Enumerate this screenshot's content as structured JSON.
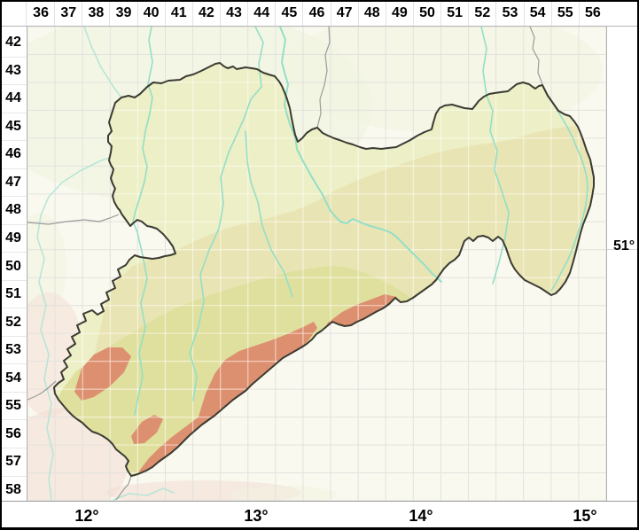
{
  "axes": {
    "top": [
      "36",
      "37",
      "38",
      "39",
      "40",
      "41",
      "42",
      "43",
      "44",
      "45",
      "46",
      "47",
      "48",
      "49",
      "50",
      "51",
      "52",
      "53",
      "54",
      "55",
      "56"
    ],
    "left": [
      "42",
      "43",
      "44",
      "45",
      "46",
      "47",
      "48",
      "49",
      "50",
      "51",
      "52",
      "53",
      "54",
      "55",
      "56",
      "57",
      "58"
    ],
    "bottom": [
      "12°",
      "13°",
      "14°",
      "15°"
    ],
    "right": "51°"
  },
  "colors": {
    "outside": "#faf9ef",
    "lowland": "#edefc6",
    "midland": "#e9e4b3",
    "upland": "#dfe09d",
    "mountains": "#dd9070",
    "river": "#93dfc7",
    "river_pale": "#b7e6d6",
    "saxony_border": "#3b3b33",
    "state_border": "#9b9b9b",
    "grid": "#e2e2df",
    "frame": "#000000",
    "axis_text": "#000000",
    "tint_green": "#eff4dd",
    "tint_pink": "#f3ddd3"
  }
}
